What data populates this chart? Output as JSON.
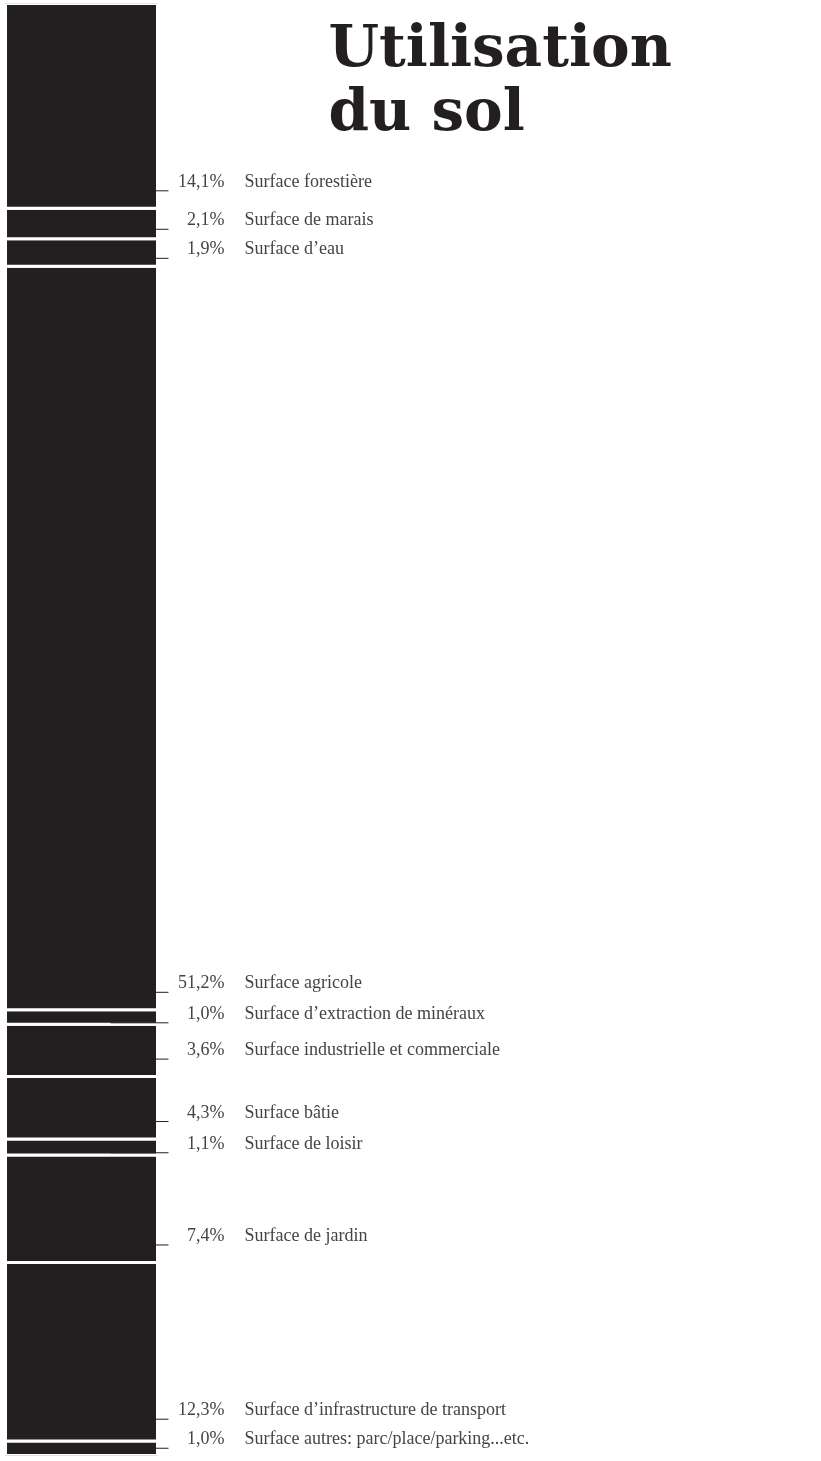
{
  "chart_data": {
    "type": "bar",
    "title": "Utilisation\ndu sol",
    "stacked": true,
    "categories": [
      null
    ],
    "ylim": [
      0,
      100
    ],
    "tick_labels": false,
    "series": [
      {
        "name": "Surface autres: parc/place/parking...etc.",
        "color": "#231f20",
        "values": [
          1.0
        ],
        "value_labels": [
          "1,0%"
        ]
      },
      {
        "name": "Surface d’infrastructure de transport",
        "color": "#231f20",
        "values": [
          12.3
        ],
        "value_labels": [
          "12,3%"
        ]
      },
      {
        "name": "Surface de jardin",
        "color": "#231f20",
        "values": [
          7.4
        ],
        "value_labels": [
          "7,4%"
        ]
      },
      {
        "name": "Surface de loisir",
        "color": "#231f20",
        "values": [
          1.1
        ],
        "value_labels": [
          "1,1%"
        ]
      },
      {
        "name": "Surface bâtie",
        "color": "#231f20",
        "values": [
          4.3
        ],
        "value_labels": [
          "4,3%"
        ]
      },
      {
        "name": "Surface industrielle et commerciale",
        "color": "#231f20",
        "values": [
          3.6
        ],
        "value_labels": [
          "3,6%"
        ]
      },
      {
        "name": "Surface d’extraction de minéraux",
        "color": "#231f20",
        "values": [
          1.0
        ],
        "value_labels": [
          "1,0%"
        ]
      },
      {
        "name": "Surface agricole",
        "color": "#231f20",
        "values": [
          51.2
        ],
        "value_labels": [
          "51,2%"
        ]
      },
      {
        "name": "Surface d’eau",
        "color": "#231f20",
        "values": [
          1.9
        ],
        "value_labels": [
          "1,9%"
        ]
      },
      {
        "name": "Surface de marais",
        "color": "#231f20",
        "values": [
          2.1
        ],
        "value_labels": [
          "2,1%"
        ]
      },
      {
        "name": "Surface forestière",
        "color": "#231f20",
        "values": [
          14.1
        ],
        "value_labels": [
          "14,1%"
        ]
      }
    ]
  }
}
